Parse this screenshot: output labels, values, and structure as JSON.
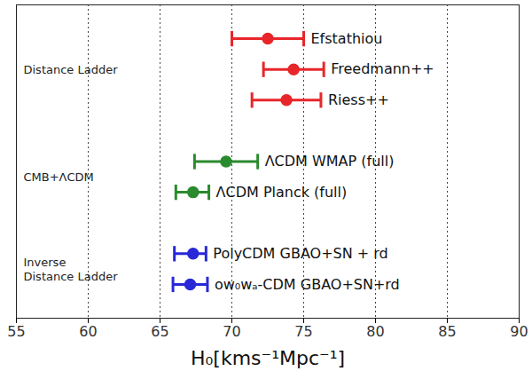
{
  "chart_data": {
    "type": "errorbar",
    "orientation": "horizontal",
    "xlabel": "H₀[kms⁻¹Mpc⁻¹]",
    "xlim": [
      55,
      90
    ],
    "xticks": [
      55,
      60,
      65,
      70,
      75,
      80,
      85,
      90
    ],
    "grid": true,
    "tick_labels": "x",
    "series": [
      {
        "name": "Distance Ladder",
        "color": "#e8262a",
        "categories": [
          "Efstathiou",
          "Freedmann++",
          "Riess++"
        ],
        "values": [
          72.5,
          74.3,
          73.8
        ],
        "lower": [
          70.0,
          72.2,
          71.4
        ],
        "upper": [
          75.0,
          76.4,
          76.2
        ]
      },
      {
        "name": "CMB+ΛCDM",
        "color": "#2a8a2e",
        "categories": [
          "ΛCDM WMAP (full)",
          "ΛCDM Planck (full)"
        ],
        "values": [
          69.6,
          67.3
        ],
        "lower": [
          67.4,
          66.1
        ],
        "upper": [
          71.8,
          68.4
        ]
      },
      {
        "name": "Inverse\nDistance Ladder",
        "color": "#2828d8",
        "categories": [
          "PolyCDM GBAO+SN + rd",
          "ow₀wₐ-CDM GBAO+SN+rd"
        ],
        "values": [
          67.3,
          67.1
        ],
        "lower": [
          66.0,
          65.9
        ],
        "upper": [
          68.2,
          68.3
        ]
      }
    ]
  }
}
